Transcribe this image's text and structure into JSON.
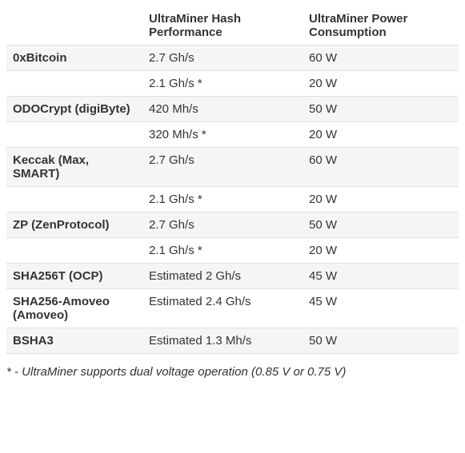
{
  "table": {
    "text_color": "#333333",
    "header_fontsize": 15,
    "header_fontweight": "600",
    "cell_fontsize": 15,
    "cell_padding_v": 7,
    "cell_padding_h": 8,
    "algo_fontweight": "700",
    "columns": [
      {
        "key": "algo",
        "label": ""
      },
      {
        "key": "hash",
        "label": "UltraMiner Hash Performance"
      },
      {
        "key": "power",
        "label": "UltraMiner Power Consumption"
      }
    ],
    "rows": [
      {
        "algo": "0xBitcoin",
        "hash": "2.7 Gh/s",
        "power": "60 W"
      },
      {
        "algo": "",
        "hash": "2.1 Gh/s *",
        "power": "20 W"
      },
      {
        "algo": "ODOCrypt (digiByte)",
        "hash": "420 Mh/s",
        "power": "50 W"
      },
      {
        "algo": "",
        "hash": "320 Mh/s *",
        "power": "20 W"
      },
      {
        "algo": "Keccak (Max, SMART)",
        "hash": "2.7 Gh/s",
        "power": "60 W"
      },
      {
        "algo": "",
        "hash": "2.1 Gh/s *",
        "power": "20 W"
      },
      {
        "algo": "ZP (ZenProtocol)",
        "hash": "2.7 Gh/s",
        "power": "50 W"
      },
      {
        "algo": "",
        "hash": "2.1 Gh/s *",
        "power": "20 W"
      },
      {
        "algo": "SHA256T (OCP)",
        "hash": "Estimated 2 Gh/s",
        "power": "45 W"
      },
      {
        "algo": "SHA256-Amoveo (Amoveo)",
        "hash": "Estimated 2.4 Gh/s",
        "power": "45 W"
      },
      {
        "algo": "BSHA3",
        "hash": "Estimated 1.3 Mh/s",
        "power": "50 W"
      }
    ]
  },
  "footnote": {
    "text": "* - UltraMiner supports dual voltage operation (0.85 V or 0.75 V)",
    "fontstyle": "italic",
    "fontsize": 15,
    "color": "#333333"
  }
}
